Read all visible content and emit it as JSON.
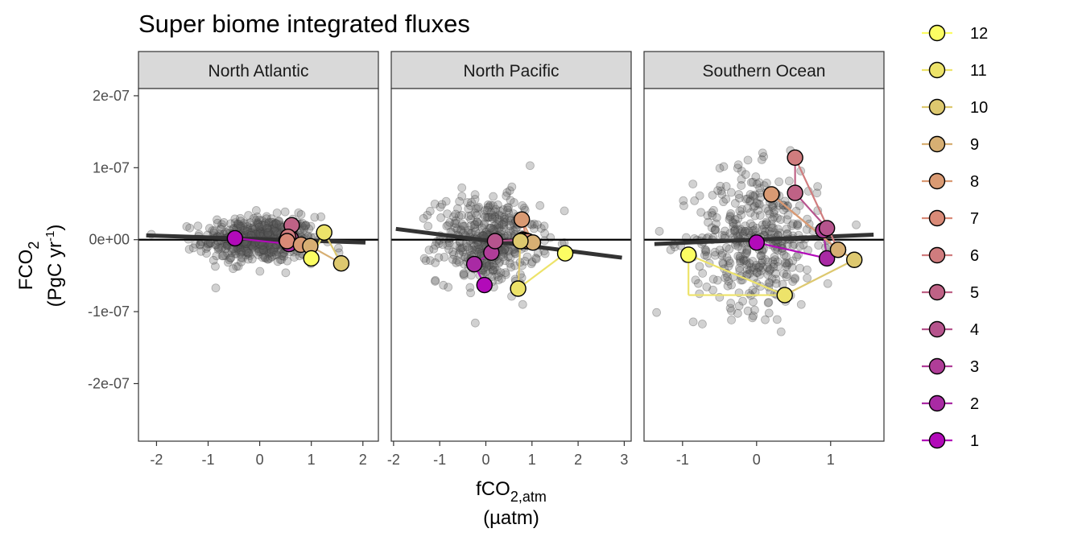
{
  "chart_data": {
    "type": "scatter",
    "title": "Super biome integrated fluxes",
    "xlabel": {
      "main": "fCO",
      "sub": "2,atm",
      "unit": "(µatm)"
    },
    "ylabel": {
      "main": "FCO",
      "sub": "2",
      "unit_pre": "(PgC yr",
      "unit_sup": "-1",
      "unit_post": ")"
    },
    "ylim": [
      -2.8e-07,
      2.1e-07
    ],
    "yticks": [
      2e-07,
      1e-07,
      0,
      -1e-07,
      -2e-07
    ],
    "ytick_labels": [
      "2e-07",
      "1e-07",
      "0e+00",
      "-1e-07",
      "-2e-07"
    ],
    "grid": false,
    "legend_position": "right",
    "legend": {
      "items": [
        "12",
        "11",
        "10",
        "9",
        "8",
        "7",
        "6",
        "5",
        "4",
        "3",
        "2",
        "1"
      ],
      "colors": [
        "#FCFD63",
        "#EDE36A",
        "#DDC86F",
        "#D7AF73",
        "#D99A73",
        "#D98A77",
        "#D07C7E",
        "#BF6286",
        "#B6548D",
        "#B03D98",
        "#A92AA4",
        "#B20AB9"
      ]
    },
    "panels": [
      {
        "name": "North Atlantic",
        "xlim": [
          -2.35,
          2.3
        ],
        "xticks": [
          -2,
          -1,
          0,
          1,
          2
        ],
        "xtick_labels": [
          "-2",
          "-1",
          "0",
          "1",
          "2"
        ],
        "regression": {
          "x": [
            -2.2,
            2.05
          ],
          "y": [
            6e-09,
            -4e-09
          ]
        },
        "monthly": [
          {
            "month": 1,
            "x": -0.48,
            "y": 2e-09
          },
          {
            "month": 2,
            "x": 0.57,
            "y": -6e-09
          },
          {
            "month": 3,
            "x": 0.52,
            "y": -1e-09
          },
          {
            "month": 4,
            "x": 0.6,
            "y": 2e-09
          },
          {
            "month": 5,
            "x": 0.62,
            "y": 2e-08
          },
          {
            "month": 6,
            "x": 0.55,
            "y": 4e-09
          },
          {
            "month": 7,
            "x": 0.53,
            "y": -2e-09
          },
          {
            "month": 8,
            "x": 0.8,
            "y": -7e-09
          },
          {
            "month": 9,
            "x": 0.98,
            "y": -9e-09
          },
          {
            "month": 10,
            "x": 1.58,
            "y": -3.3e-08
          },
          {
            "month": 11,
            "x": 1.25,
            "y": 1e-08
          },
          {
            "month": 12,
            "x": 1.0,
            "y": -2.6e-08
          }
        ]
      },
      {
        "name": "North Pacific",
        "xlim": [
          -2.05,
          3.15
        ],
        "xticks": [
          -2,
          -1,
          0,
          1,
          2,
          3
        ],
        "xtick_labels": [
          "-2",
          "-1",
          "0",
          "1",
          "2",
          "3"
        ],
        "regression": {
          "x": [
            -1.95,
            2.95
          ],
          "y": [
            1.5e-08,
            -2.5e-08
          ]
        },
        "monthly": [
          {
            "month": 1,
            "x": -0.03,
            "y": -6.3e-08
          },
          {
            "month": 2,
            "x": -0.25,
            "y": -3.4e-08
          },
          {
            "month": 3,
            "x": 0.12,
            "y": -1.8e-08
          },
          {
            "month": 4,
            "x": 0.2,
            "y": -2e-09
          },
          {
            "month": 5,
            "x": 0.8,
            "y": 0
          },
          {
            "month": 6,
            "x": 0.85,
            "y": -1e-09
          },
          {
            "month": 7,
            "x": 0.9,
            "y": -2e-09
          },
          {
            "month": 8,
            "x": 0.78,
            "y": 2.8e-08
          },
          {
            "month": 9,
            "x": 1.02,
            "y": -4e-09
          },
          {
            "month": 10,
            "x": 0.75,
            "y": -2e-09
          },
          {
            "month": 11,
            "x": 0.7,
            "y": -6.8e-08
          },
          {
            "month": 12,
            "x": 1.72,
            "y": -1.9e-08
          }
        ]
      },
      {
        "name": "Southern Ocean",
        "xlim": [
          -1.52,
          1.72
        ],
        "xticks": [
          -1,
          0,
          1
        ],
        "xtick_labels": [
          "-1",
          "0",
          "1"
        ],
        "regression": {
          "x": [
            -1.38,
            1.58
          ],
          "y": [
            -6e-09,
            7e-09
          ]
        },
        "monthly": [
          {
            "month": 1,
            "x": 0.0,
            "y": -4e-09
          },
          {
            "month": 2,
            "x": 0.95,
            "y": -2.6e-08
          },
          {
            "month": 3,
            "x": 0.9,
            "y": 1.3e-08
          },
          {
            "month": 4,
            "x": 0.95,
            "y": 1.6e-08
          },
          {
            "month": 5,
            "x": 0.52,
            "y": 6.5e-08
          },
          {
            "month": 6,
            "x": 0.52,
            "y": 1.14e-07
          },
          {
            "month": 7,
            "x": 1.1,
            "y": -1.4e-08
          },
          {
            "month": 8,
            "x": 0.2,
            "y": 6.3e-08
          },
          {
            "month": 9,
            "x": 1.1,
            "y": -1.4e-08
          },
          {
            "month": 10,
            "x": 1.32,
            "y": -2.8e-08
          },
          {
            "month": 11,
            "x": 0.38,
            "y": -7.7e-08
          },
          {
            "month": 12,
            "x": -0.92,
            "y": -2.1e-08
          }
        ],
        "extra_path_points": [
          {
            "month": 11,
            "x": -0.92,
            "y": -7.7e-08
          }
        ]
      }
    ]
  }
}
